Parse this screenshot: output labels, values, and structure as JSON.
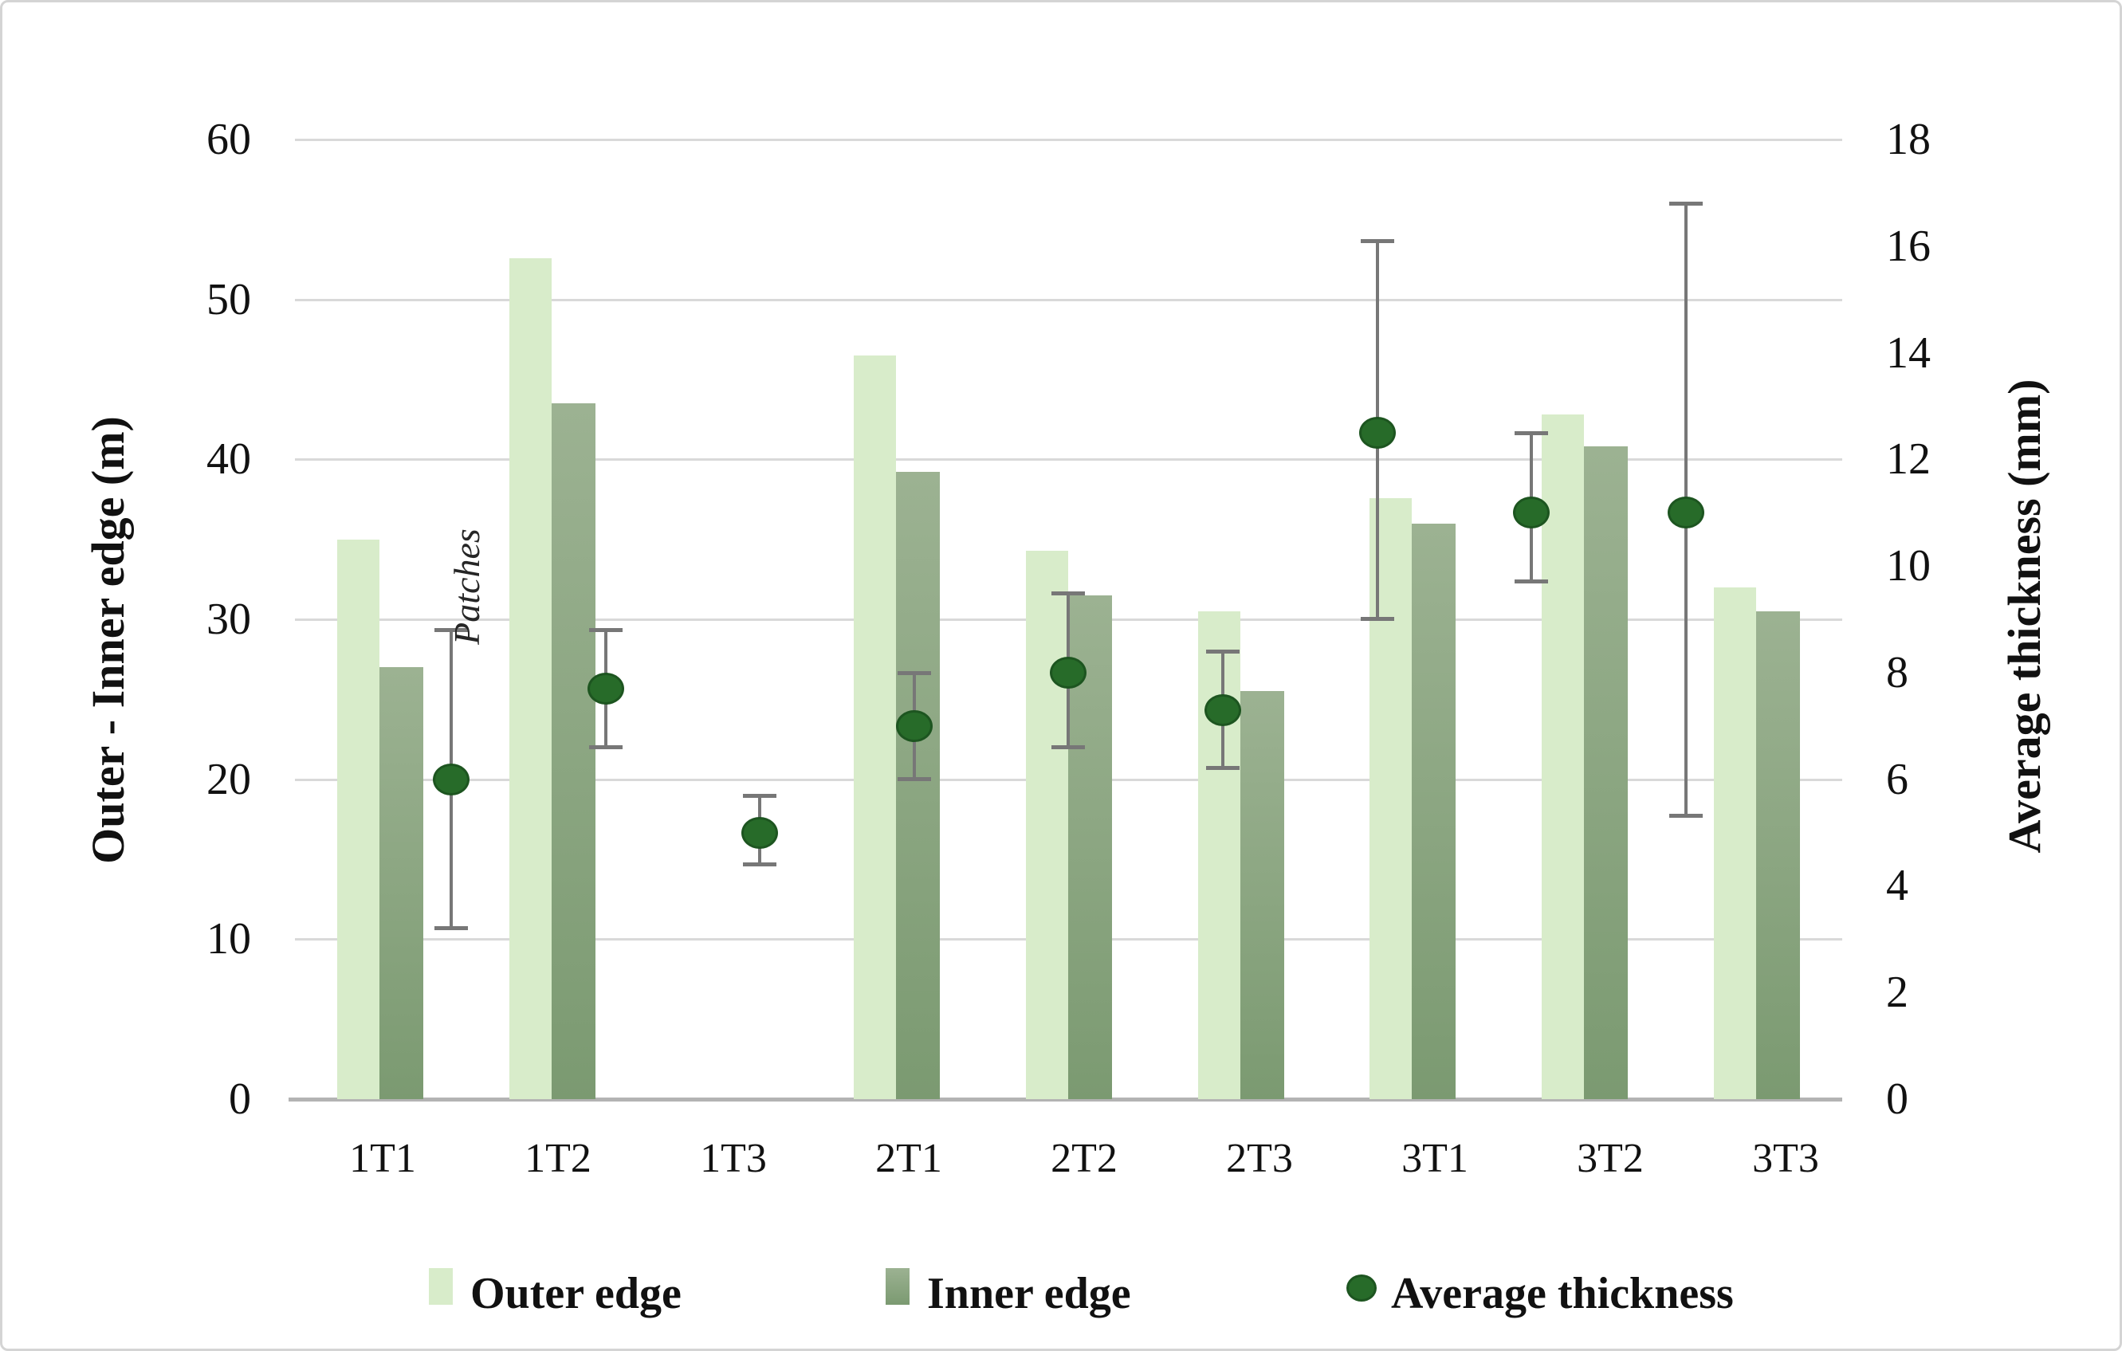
{
  "figure": {
    "left_axis_title": "Outer - Inner edge (m)",
    "right_axis_title": "Average thickness (mm)",
    "annotation_text": "Patches",
    "legend": {
      "outer_label": "Outer edge",
      "inner_label": "Inner edge",
      "thickness_label": "Average thickness"
    }
  },
  "colors": {
    "outer_bar": "#d8ecca",
    "inner_bar_top": "#9cb292",
    "inner_bar_bottom": "#7b9a71",
    "marker_fill": "#276b29",
    "marker_border": "#1d5520",
    "error_bar": "#777777",
    "gridline": "#d9d9d9",
    "axis_line": "#b3b3b3",
    "text": "#111111"
  },
  "chart_data": {
    "type": "bar",
    "subtype": "grouped-bars-with-scatter-errorbars",
    "categories": [
      "1T1",
      "1T2",
      "1T3",
      "2T1",
      "2T2",
      "2T3",
      "3T1",
      "3T2",
      "3T3"
    ],
    "series": [
      {
        "name": "Outer edge",
        "type": "bar",
        "axis": "left",
        "unit": "m",
        "values": [
          35.0,
          52.6,
          null,
          46.5,
          34.3,
          30.5,
          37.6,
          42.8,
          32.0
        ]
      },
      {
        "name": "Inner edge",
        "type": "bar",
        "axis": "left",
        "unit": "m",
        "values": [
          27.0,
          43.5,
          null,
          39.2,
          31.5,
          25.5,
          36.0,
          40.8,
          30.5
        ]
      },
      {
        "name": "Average thickness",
        "type": "scatter",
        "axis": "right",
        "unit": "mm",
        "values": [
          6.0,
          7.7,
          5.0,
          7.0,
          8.0,
          7.3,
          12.5,
          11.0,
          11.0
        ],
        "error_low": [
          3.2,
          6.6,
          4.4,
          6.0,
          6.6,
          6.2,
          9.0,
          9.7,
          5.3
        ],
        "error_high": [
          8.8,
          8.8,
          5.7,
          8.0,
          9.5,
          8.4,
          16.1,
          12.5,
          16.8
        ]
      }
    ],
    "annotations": [
      {
        "text": "Patches",
        "category": "1T3",
        "note": "shown instead of missing bars"
      }
    ],
    "left_axis": {
      "label": "Outer - Inner edge (m)",
      "ticks": [
        60,
        50,
        40,
        30,
        20,
        10,
        0
      ],
      "ylim": [
        0,
        60
      ]
    },
    "right_axis": {
      "label": "Average thickness (mm)",
      "ticks": [
        18,
        16,
        14,
        12,
        10,
        8,
        6,
        4,
        2,
        0
      ],
      "ylim": [
        0,
        18
      ]
    },
    "grid": true,
    "legend_position": "bottom"
  }
}
